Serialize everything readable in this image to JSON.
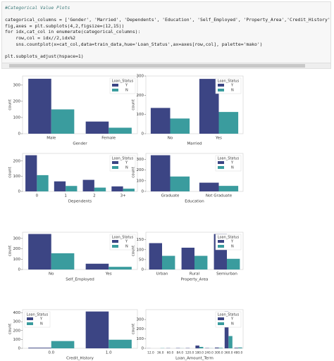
{
  "code": [
    "#Categorical Value Plots",
    "categorical_columns = ['Gender', 'Married', 'Dependents', 'Education', 'Self_Employed', 'Property_Area','Credit_History','Loan_Am",
    "fig,axes = plt.subplots(4,2,figsize=(12,15))",
    "for idx,cat_col in enumerate(categorical_columns):",
    "    row,col = idx//2,idx%2",
    "    sns.countplot(x=cat_col,data=train_data,hue='Loan_Status',ax=axes[row,col], palette='mako')",
    "plt.subplots_adjust(hspace=1)"
  ],
  "chart_data": [
    {
      "type": "bar",
      "x_label": "Gender",
      "y_label": "count",
      "legend_title": "Loan_Status",
      "legend": "upper right",
      "categories": [
        "Male",
        "Female"
      ],
      "series": [
        {
          "name": "Y",
          "color": "#3c4584",
          "values": [
            339,
            75
          ]
        },
        {
          "name": "N",
          "color": "#3a9c9e",
          "values": [
            150,
            37
          ]
        }
      ],
      "ylim": [
        0,
        356
      ],
      "yticks": [
        0,
        100,
        200,
        300
      ]
    },
    {
      "type": "bar",
      "x_label": "Married",
      "y_label": "count",
      "legend_title": "Loan_Status",
      "legend": "upper right",
      "categories": [
        "No",
        "Yes"
      ],
      "series": [
        {
          "name": "Y",
          "color": "#3c4584",
          "values": [
            134,
            285
          ]
        },
        {
          "name": "N",
          "color": "#3a9c9e",
          "values": [
            79,
            113
          ]
        }
      ],
      "ylim": [
        0,
        300
      ],
      "yticks": [
        0,
        100,
        200,
        300
      ]
    },
    {
      "type": "bar",
      "x_label": "Dependents",
      "y_label": "count",
      "legend_title": "Loan_Status",
      "legend": "upper right",
      "categories": [
        "0",
        "1",
        "2",
        "3+"
      ],
      "series": [
        {
          "name": "Y",
          "color": "#3c4584",
          "values": [
            238,
            66,
            76,
            33
          ]
        },
        {
          "name": "N",
          "color": "#3a9c9e",
          "values": [
            107,
            36,
            25,
            18
          ]
        }
      ],
      "ylim": [
        0,
        250
      ],
      "yticks": [
        0,
        100,
        200
      ]
    },
    {
      "type": "bar",
      "x_label": "Education",
      "y_label": "count",
      "legend_title": "Loan_Status",
      "legend": "upper right",
      "categories": [
        "Graduate",
        "Not Graduate"
      ],
      "series": [
        {
          "name": "Y",
          "color": "#3c4584",
          "values": [
            340,
            82
          ]
        },
        {
          "name": "N",
          "color": "#3a9c9e",
          "values": [
            140,
            52
          ]
        }
      ],
      "ylim": [
        0,
        357
      ],
      "yticks": [
        0,
        100,
        200,
        300
      ]
    },
    {
      "type": "bar",
      "x_label": "Self_Employed",
      "y_label": "count",
      "legend_title": "Loan_Status",
      "legend": "upper right",
      "categories": [
        "No",
        "Yes"
      ],
      "series": [
        {
          "name": "Y",
          "color": "#3c4584",
          "values": [
            343,
            56
          ]
        },
        {
          "name": "N",
          "color": "#3a9c9e",
          "values": [
            157,
            26
          ]
        }
      ],
      "ylim": [
        0,
        360
      ],
      "yticks": [
        0,
        100,
        200,
        300
      ]
    },
    {
      "type": "bar",
      "x_label": "Property_Area",
      "y_label": "count",
      "legend_title": "Loan_Status",
      "legend": "upper right",
      "categories": [
        "Urban",
        "Rural",
        "Semiurban"
      ],
      "series": [
        {
          "name": "Y",
          "color": "#3c4584",
          "values": [
            133,
            110,
            179
          ]
        },
        {
          "name": "N",
          "color": "#3a9c9e",
          "values": [
            69,
            69,
            54
          ]
        }
      ],
      "ylim": [
        0,
        188
      ],
      "yticks": [
        0,
        50,
        100,
        150
      ]
    },
    {
      "type": "bar",
      "x_label": "Credit_History",
      "y_label": "count",
      "legend_title": "Loan_Status",
      "legend": "upper left",
      "categories": [
        "0.0",
        "1.0"
      ],
      "series": [
        {
          "name": "Y",
          "color": "#3c4584",
          "values": [
            7,
            415
          ]
        },
        {
          "name": "N",
          "color": "#3a9c9e",
          "values": [
            82,
            97
          ]
        }
      ],
      "ylim": [
        0,
        436
      ],
      "yticks": [
        0,
        100,
        200,
        300,
        400
      ]
    },
    {
      "type": "bar",
      "x_label": "Loan_Amount_Term",
      "y_label": "count",
      "legend_title": "Loan_Status",
      "legend": "upper right",
      "categories": [
        "12.0",
        "36.0",
        "60.0",
        "84.0",
        "120.0",
        "180.0",
        "240.0",
        "300.0",
        "360.0",
        "480.0"
      ],
      "series": [
        {
          "name": "Y",
          "color": "#3c4584",
          "values": [
            1,
            0,
            2,
            3,
            3,
            29,
            3,
            8,
            384,
            6
          ]
        },
        {
          "name": "N",
          "color": "#3a9c9e",
          "values": [
            0,
            2,
            0,
            1,
            0,
            15,
            1,
            5,
            128,
            9
          ]
        }
      ],
      "ylim": [
        0,
        403
      ],
      "yticks": [
        0,
        100,
        200,
        300
      ]
    }
  ]
}
